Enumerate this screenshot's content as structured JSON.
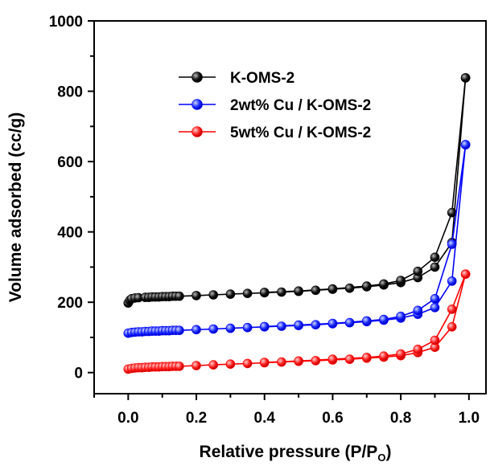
{
  "chart_data": {
    "type": "line",
    "title": "",
    "xlabel": "Relative pressure (P/P",
    "xlabel_sub": "O",
    "xlabel_close": ")",
    "ylabel": "Volume adsorbed (cc/g)",
    "xlim": [
      -0.1,
      1.05
    ],
    "ylim": [
      -60,
      1000
    ],
    "x_ticks": [
      0.0,
      0.2,
      0.4,
      0.6,
      0.8,
      1.0
    ],
    "x_tick_labels": [
      "0.0",
      "0.2",
      "0.4",
      "0.6",
      "0.8",
      "1.0"
    ],
    "y_ticks": [
      0,
      200,
      400,
      600,
      800,
      1000
    ],
    "y_tick_labels": [
      "0",
      "200",
      "400",
      "600",
      "800",
      "1000"
    ],
    "grid": false,
    "legend_position": "top-left",
    "series": [
      {
        "name": "K-OMS-2",
        "color": "#000000",
        "adsorption": [
          [
            0.0,
            198
          ],
          [
            0.005,
            206
          ],
          [
            0.01,
            210
          ],
          [
            0.02,
            212
          ],
          [
            0.03,
            213
          ],
          [
            0.05,
            214
          ],
          [
            0.06,
            214
          ],
          [
            0.07,
            215
          ],
          [
            0.08,
            215
          ],
          [
            0.09,
            215
          ],
          [
            0.1,
            216
          ],
          [
            0.11,
            216
          ],
          [
            0.12,
            216
          ],
          [
            0.13,
            217
          ],
          [
            0.14,
            217
          ],
          [
            0.15,
            217
          ],
          [
            0.2,
            219
          ],
          [
            0.25,
            221
          ],
          [
            0.3,
            223
          ],
          [
            0.35,
            225
          ],
          [
            0.4,
            227
          ],
          [
            0.45,
            229
          ],
          [
            0.5,
            231
          ],
          [
            0.55,
            234
          ],
          [
            0.6,
            237
          ],
          [
            0.65,
            240
          ],
          [
            0.7,
            244
          ],
          [
            0.75,
            249
          ],
          [
            0.8,
            256
          ],
          [
            0.85,
            270
          ],
          [
            0.9,
            300
          ],
          [
            0.95,
            370
          ],
          [
            0.99,
            838
          ]
        ],
        "desorption": [
          [
            0.99,
            838
          ],
          [
            0.95,
            455
          ],
          [
            0.9,
            328
          ],
          [
            0.85,
            288
          ],
          [
            0.8,
            262
          ],
          [
            0.75,
            252
          ],
          [
            0.7,
            246
          ],
          [
            0.6,
            238
          ],
          [
            0.5,
            232
          ],
          [
            0.4,
            228
          ]
        ]
      },
      {
        "name": "2wt% Cu / K-OMS-2",
        "color": "#0000ff",
        "adsorption": [
          [
            0.0,
            112
          ],
          [
            0.01,
            114
          ],
          [
            0.02,
            115
          ],
          [
            0.03,
            116
          ],
          [
            0.04,
            116
          ],
          [
            0.05,
            117
          ],
          [
            0.06,
            117
          ],
          [
            0.07,
            118
          ],
          [
            0.08,
            118
          ],
          [
            0.09,
            118
          ],
          [
            0.1,
            119
          ],
          [
            0.11,
            119
          ],
          [
            0.12,
            119
          ],
          [
            0.13,
            120
          ],
          [
            0.14,
            120
          ],
          [
            0.15,
            120
          ],
          [
            0.2,
            122
          ],
          [
            0.25,
            124
          ],
          [
            0.3,
            126
          ],
          [
            0.35,
            128
          ],
          [
            0.4,
            130
          ],
          [
            0.45,
            132
          ],
          [
            0.5,
            134
          ],
          [
            0.55,
            136
          ],
          [
            0.6,
            139
          ],
          [
            0.65,
            142
          ],
          [
            0.7,
            145
          ],
          [
            0.75,
            149
          ],
          [
            0.8,
            155
          ],
          [
            0.85,
            166
          ],
          [
            0.9,
            185
          ],
          [
            0.95,
            260
          ],
          [
            0.99,
            648
          ]
        ],
        "desorption": [
          [
            0.99,
            648
          ],
          [
            0.95,
            365
          ],
          [
            0.9,
            210
          ],
          [
            0.85,
            177
          ],
          [
            0.8,
            160
          ],
          [
            0.75,
            151
          ],
          [
            0.7,
            147
          ],
          [
            0.6,
            140
          ],
          [
            0.5,
            135
          ],
          [
            0.4,
            131
          ]
        ]
      },
      {
        "name": "5wt% Cu / K-OMS-2",
        "color": "#ff0000",
        "adsorption": [
          [
            0.0,
            10
          ],
          [
            0.01,
            12
          ],
          [
            0.02,
            13
          ],
          [
            0.03,
            14
          ],
          [
            0.04,
            14
          ],
          [
            0.05,
            15
          ],
          [
            0.06,
            15
          ],
          [
            0.07,
            16
          ],
          [
            0.08,
            16
          ],
          [
            0.09,
            16
          ],
          [
            0.1,
            17
          ],
          [
            0.11,
            17
          ],
          [
            0.12,
            17
          ],
          [
            0.13,
            18
          ],
          [
            0.14,
            18
          ],
          [
            0.15,
            18
          ],
          [
            0.2,
            20
          ],
          [
            0.25,
            22
          ],
          [
            0.3,
            24
          ],
          [
            0.35,
            26
          ],
          [
            0.4,
            28
          ],
          [
            0.45,
            30
          ],
          [
            0.5,
            32
          ],
          [
            0.55,
            34
          ],
          [
            0.6,
            36
          ],
          [
            0.65,
            38
          ],
          [
            0.7,
            41
          ],
          [
            0.75,
            44
          ],
          [
            0.8,
            48
          ],
          [
            0.85,
            57
          ],
          [
            0.9,
            72
          ],
          [
            0.95,
            130
          ],
          [
            0.99,
            280
          ]
        ],
        "desorption": [
          [
            0.99,
            280
          ],
          [
            0.95,
            180
          ],
          [
            0.9,
            92
          ],
          [
            0.85,
            66
          ],
          [
            0.8,
            53
          ],
          [
            0.75,
            47
          ],
          [
            0.7,
            43
          ],
          [
            0.6,
            38
          ],
          [
            0.5,
            33
          ],
          [
            0.4,
            29
          ]
        ]
      }
    ]
  }
}
